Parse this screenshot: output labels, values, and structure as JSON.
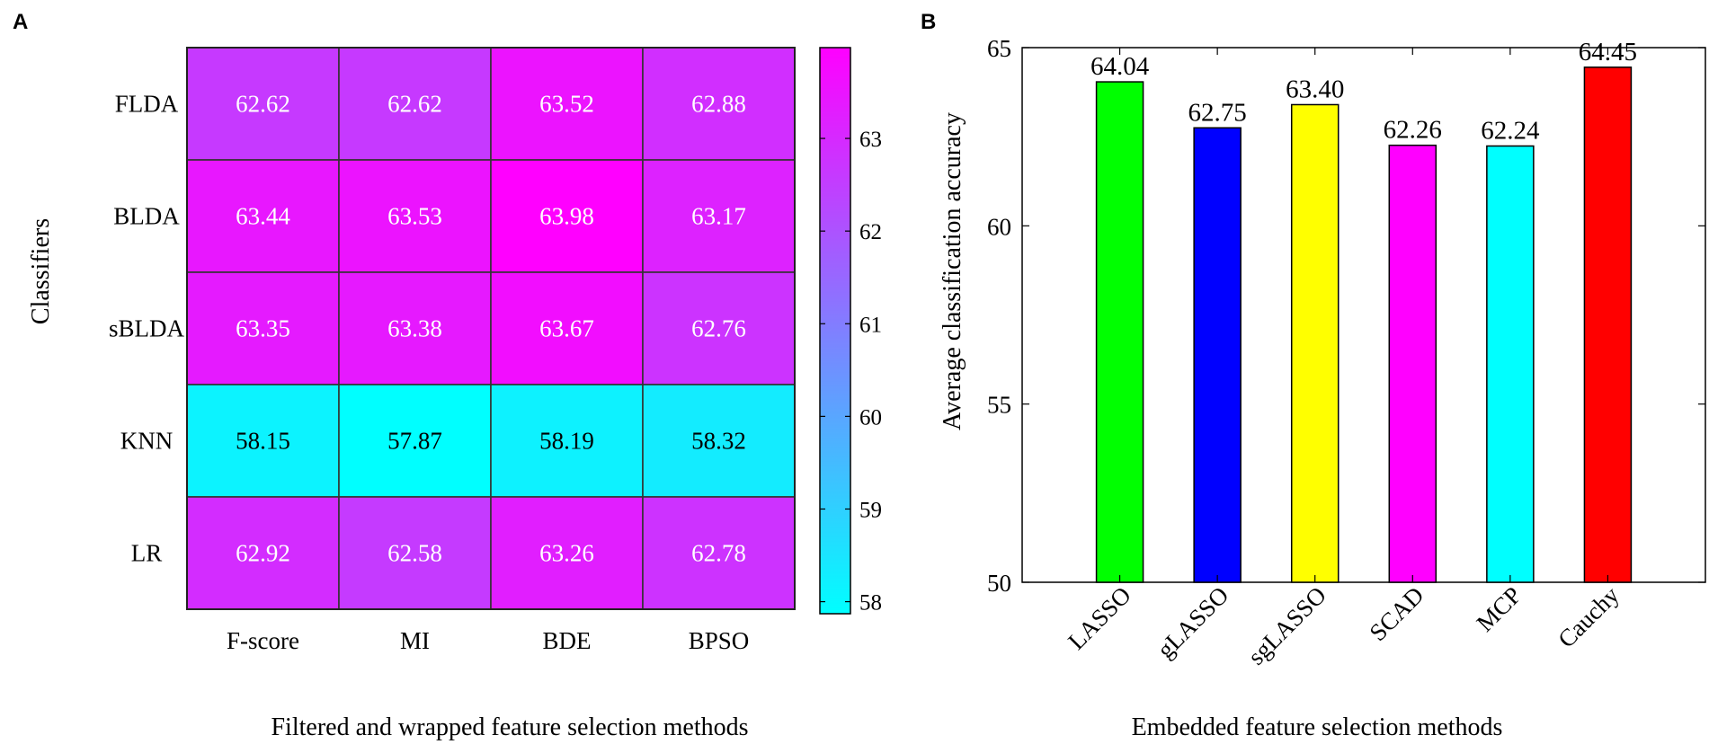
{
  "chart_data": [
    {
      "panel": "A",
      "type": "heatmap",
      "rows": [
        "FLDA",
        "BLDA",
        "sBLDA",
        "KNN",
        "LR"
      ],
      "columns": [
        "F-score",
        "MI",
        "BDE",
        "BPSO"
      ],
      "values": [
        [
          "62.62",
          "62.62",
          "63.52",
          "62.88"
        ],
        [
          "63.44",
          "63.53",
          "63.98",
          "63.17"
        ],
        [
          "63.35",
          "63.38",
          "63.67",
          "62.76"
        ],
        [
          "58.15",
          "57.87",
          "58.19",
          "58.32"
        ],
        [
          "62.92",
          "62.58",
          "63.26",
          "62.78"
        ]
      ],
      "xlabel": "Filtered and wrapped feature selection methods",
      "ylabel": "Classifiers",
      "colorbar": {
        "ticks": [
          "58",
          "59",
          "60",
          "61",
          "62",
          "63"
        ],
        "range": [
          57.87,
          63.98
        ],
        "colors": [
          "#00ffff",
          "#ff00ff"
        ]
      },
      "text_colors": {
        "light": "#ffffff",
        "dark": "#000000"
      }
    },
    {
      "panel": "B",
      "type": "bar",
      "categories": [
        "LASSO",
        "gLASSO",
        "sgLASSO",
        "SCAD",
        "MCP",
        "Cauchy"
      ],
      "values": [
        64.04,
        62.75,
        63.4,
        62.26,
        62.24,
        64.45
      ],
      "value_labels": [
        "64.04",
        "62.75",
        "63.40",
        "62.26",
        "62.24",
        "64.45"
      ],
      "colors": [
        "#00ff00",
        "#0000ff",
        "#ffff00",
        "#ff00ff",
        "#00ffff",
        "#ff0000"
      ],
      "ylim": [
        50,
        65
      ],
      "yticks": [
        "50",
        "55",
        "60",
        "65"
      ],
      "xlabel": "Embedded feature selection methods",
      "ylabel": "Average classification accuracy"
    }
  ]
}
